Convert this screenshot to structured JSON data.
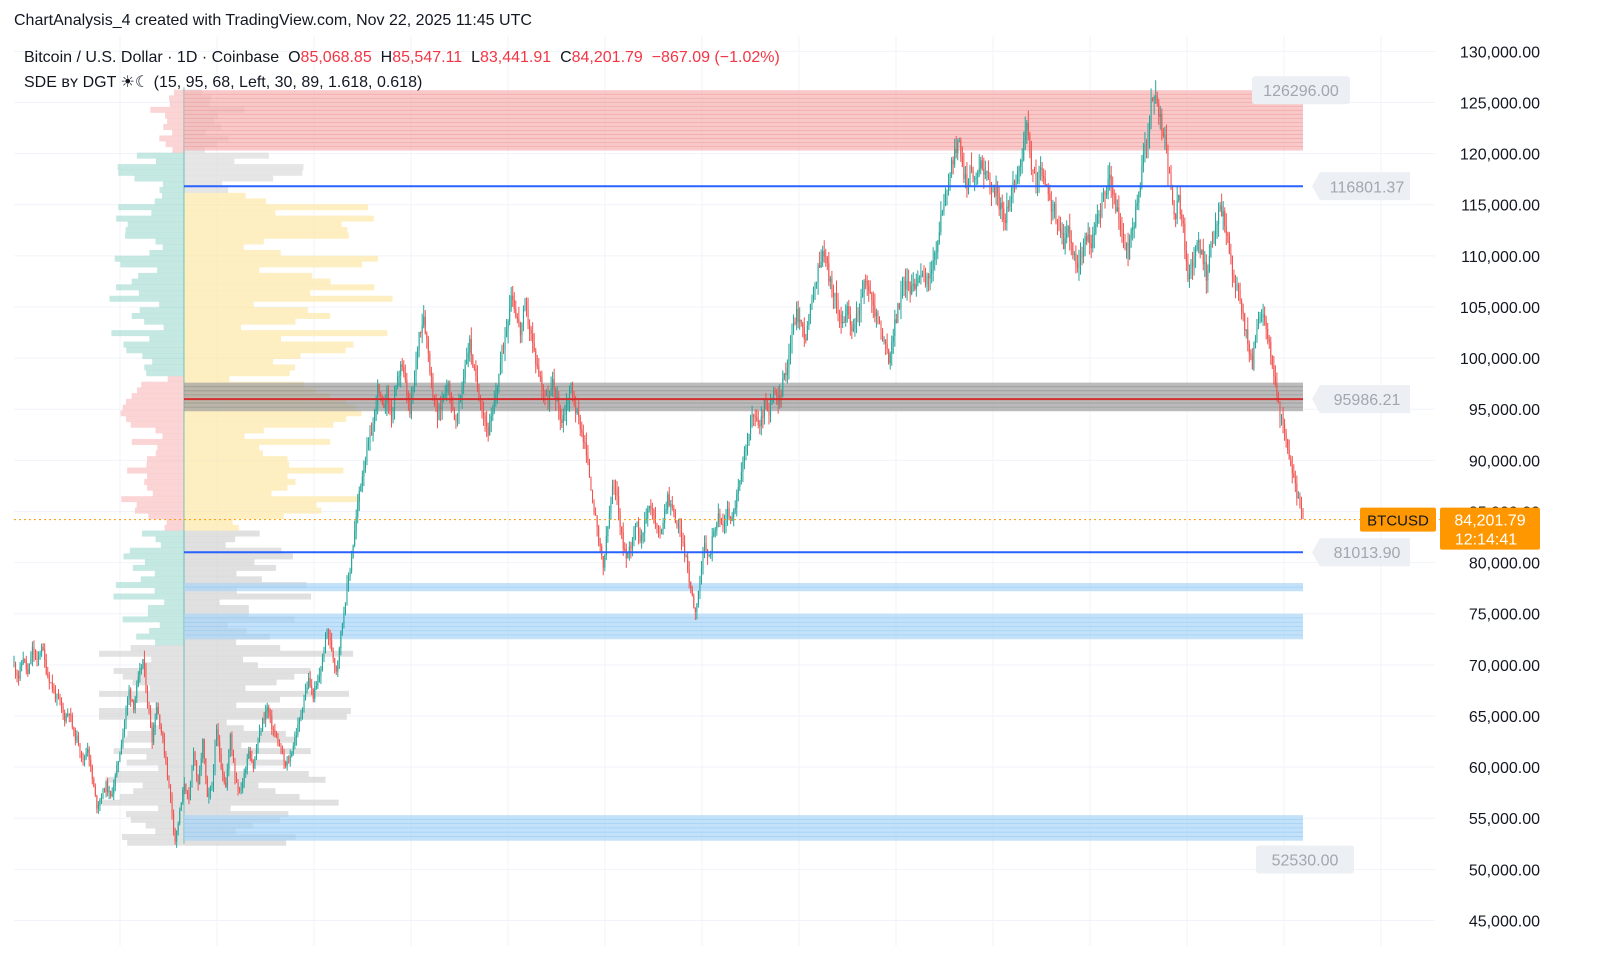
{
  "header": {
    "title": "ChartAnalysis_4 created with TradingView.com, Nov 22, 2025 11:45 UTC"
  },
  "legend": {
    "symbol": "Bitcoin / U.S. Dollar · 1D · Coinbase",
    "open_label": "O",
    "open": "85,068.85",
    "high_label": "H",
    "high": "85,547.11",
    "low_label": "L",
    "low": "83,441.91",
    "close_label": "C",
    "close": "84,201.79",
    "change": "−867.09 (−1.02%)",
    "indicator": "SDE ʙʏ DGT ☀☾ (15, 95, 68, Left, 30, 89, 1.618, 0.618)"
  },
  "colors": {
    "up": "#26a69a",
    "down": "#ef5350",
    "supply_zone": "#f7b1b1",
    "demand_zone": "#a9d6f7",
    "poc_zone": "#9e9e9e",
    "level_line": "#2962ff",
    "poc_line": "#d32f2f",
    "price_tag": "#ff9800",
    "profile_yellow": "#fde7a3",
    "profile_teal": "#9fd9ce",
    "profile_pink": "#f8b9b9"
  },
  "chart_data": {
    "type": "candlestick",
    "symbol": "BTCUSD",
    "ylim": [
      42500,
      131500
    ],
    "y_ticks": [
      "130,000.00",
      "125,000.00",
      "120,000.00",
      "115,000.00",
      "110,000.00",
      "105,000.00",
      "100,000.00",
      "95,000.00",
      "90,000.00",
      "85,000.00",
      "80,000.00",
      "75,000.00",
      "70,000.00",
      "65,000.00",
      "60,000.00",
      "55,000.00",
      "50,000.00",
      "45,000.00"
    ],
    "y_tick_values": [
      130000,
      125000,
      120000,
      115000,
      110000,
      105000,
      100000,
      95000,
      90000,
      85000,
      80000,
      75000,
      70000,
      65000,
      60000,
      55000,
      50000,
      45000
    ],
    "grid": true,
    "last_price": {
      "label": "BTCUSD",
      "value": 84201.79,
      "value_text": "84,201.79",
      "countdown": "12:14:41"
    },
    "supply_zone": [
      120300,
      126200
    ],
    "demand_zones": [
      [
        77200,
        78000
      ],
      [
        72500,
        75000
      ],
      [
        52800,
        55300
      ]
    ],
    "poc_zone": [
      94800,
      97600
    ],
    "levels": [
      {
        "value": 126296.0,
        "label": "126296.00"
      },
      {
        "value": 116801.37,
        "label": "116801.37"
      },
      {
        "value": 95986.21,
        "label": "95986.21"
      },
      {
        "value": 81013.9,
        "label": "81013.90"
      },
      {
        "value": 52530.0,
        "label": "52530.00"
      }
    ],
    "price_path": [
      [
        0,
        70000
      ],
      [
        3,
        68800
      ],
      [
        6,
        70800
      ],
      [
        9,
        69000
      ],
      [
        12,
        71500
      ],
      [
        15,
        70200
      ],
      [
        18,
        72000
      ],
      [
        21,
        69500
      ],
      [
        24,
        68200
      ],
      [
        27,
        67000
      ],
      [
        30,
        66200
      ],
      [
        33,
        64800
      ],
      [
        36,
        65500
      ],
      [
        39,
        63200
      ],
      [
        42,
        62500
      ],
      [
        45,
        60500
      ],
      [
        48,
        62000
      ],
      [
        51,
        58800
      ],
      [
        54,
        56200
      ],
      [
        57,
        57200
      ],
      [
        60,
        58200
      ],
      [
        63,
        57000
      ],
      [
        66,
        59000
      ],
      [
        69,
        61500
      ],
      [
        72,
        64500
      ],
      [
        75,
        67500
      ],
      [
        78,
        66000
      ],
      [
        81,
        68500
      ],
      [
        84,
        70500
      ],
      [
        87,
        66500
      ],
      [
        90,
        62800
      ],
      [
        93,
        66000
      ],
      [
        96,
        63500
      ],
      [
        99,
        60500
      ],
      [
        102,
        57000
      ],
      [
        105,
        52800
      ],
      [
        108,
        55500
      ],
      [
        111,
        58500
      ],
      [
        114,
        56500
      ],
      [
        117,
        61800
      ],
      [
        120,
        58000
      ],
      [
        123,
        62500
      ],
      [
        126,
        56800
      ],
      [
        129,
        58200
      ],
      [
        132,
        63500
      ],
      [
        135,
        60200
      ],
      [
        138,
        58000
      ],
      [
        141,
        63200
      ],
      [
        144,
        59200
      ],
      [
        147,
        57500
      ],
      [
        150,
        59200
      ],
      [
        153,
        61800
      ],
      [
        156,
        60000
      ],
      [
        159,
        62500
      ],
      [
        162,
        64500
      ],
      [
        165,
        65800
      ],
      [
        168,
        64000
      ],
      [
        171,
        62800
      ],
      [
        174,
        61500
      ],
      [
        177,
        60000
      ],
      [
        180,
        61000
      ],
      [
        183,
        62800
      ],
      [
        186,
        64500
      ],
      [
        189,
        66800
      ],
      [
        192,
        68500
      ],
      [
        195,
        67000
      ],
      [
        198,
        68200
      ],
      [
        201,
        70500
      ],
      [
        204,
        73500
      ],
      [
        207,
        71500
      ],
      [
        210,
        69500
      ],
      [
        213,
        73000
      ],
      [
        216,
        76500
      ],
      [
        219,
        79500
      ],
      [
        222,
        83000
      ],
      [
        225,
        87000
      ],
      [
        228,
        89500
      ],
      [
        231,
        91500
      ],
      [
        234,
        93500
      ],
      [
        237,
        97000
      ],
      [
        240,
        95000
      ],
      [
        243,
        96500
      ],
      [
        246,
        94200
      ],
      [
        249,
        96800
      ],
      [
        252,
        99500
      ],
      [
        255,
        97500
      ],
      [
        258,
        94500
      ],
      [
        261,
        98200
      ],
      [
        264,
        102500
      ],
      [
        267,
        104200
      ],
      [
        270,
        100500
      ],
      [
        273,
        96500
      ],
      [
        276,
        94200
      ],
      [
        279,
        95800
      ],
      [
        282,
        97800
      ],
      [
        285,
        95800
      ],
      [
        288,
        93500
      ],
      [
        291,
        96200
      ],
      [
        294,
        99500
      ],
      [
        297,
        101500
      ],
      [
        300,
        98500
      ],
      [
        303,
        96500
      ],
      [
        306,
        94500
      ],
      [
        309,
        92800
      ],
      [
        312,
        94500
      ],
      [
        315,
        97500
      ],
      [
        318,
        100500
      ],
      [
        321,
        103000
      ],
      [
        324,
        106500
      ],
      [
        327,
        104500
      ],
      [
        330,
        102500
      ],
      [
        333,
        105000
      ],
      [
        336,
        103000
      ],
      [
        339,
        100500
      ],
      [
        342,
        98500
      ],
      [
        345,
        97000
      ],
      [
        348,
        95500
      ],
      [
        351,
        97500
      ],
      [
        354,
        95800
      ],
      [
        357,
        93800
      ],
      [
        360,
        95500
      ],
      [
        363,
        97200
      ],
      [
        366,
        95000
      ],
      [
        369,
        93500
      ],
      [
        372,
        91500
      ],
      [
        375,
        88500
      ],
      [
        378,
        85200
      ],
      [
        381,
        82000
      ],
      [
        384,
        79500
      ],
      [
        387,
        83500
      ],
      [
        390,
        87200
      ],
      [
        393,
        86500
      ],
      [
        396,
        82500
      ],
      [
        399,
        80500
      ],
      [
        402,
        81800
      ],
      [
        405,
        84000
      ],
      [
        408,
        82500
      ],
      [
        411,
        83800
      ],
      [
        414,
        86000
      ],
      [
        417,
        84500
      ],
      [
        420,
        82500
      ],
      [
        423,
        84200
      ],
      [
        426,
        86500
      ],
      [
        429,
        85200
      ],
      [
        432,
        83800
      ],
      [
        435,
        82500
      ],
      [
        438,
        80200
      ],
      [
        441,
        77500
      ],
      [
        444,
        75200
      ],
      [
        447,
        78500
      ],
      [
        450,
        81500
      ],
      [
        453,
        80500
      ],
      [
        456,
        83200
      ],
      [
        459,
        84500
      ],
      [
        462,
        83500
      ],
      [
        465,
        85000
      ],
      [
        468,
        84200
      ],
      [
        471,
        86500
      ],
      [
        474,
        88500
      ],
      [
        477,
        91500
      ],
      [
        480,
        93800
      ],
      [
        483,
        94500
      ],
      [
        486,
        93000
      ],
      [
        489,
        95500
      ],
      [
        492,
        94200
      ],
      [
        495,
        96800
      ],
      [
        498,
        95500
      ],
      [
        501,
        97500
      ],
      [
        504,
        99500
      ],
      [
        507,
        102500
      ],
      [
        510,
        104500
      ],
      [
        513,
        103200
      ],
      [
        516,
        102000
      ],
      [
        519,
        104800
      ],
      [
        522,
        107000
      ],
      [
        525,
        109500
      ],
      [
        528,
        110500
      ],
      [
        531,
        108000
      ],
      [
        534,
        106200
      ],
      [
        537,
        104800
      ],
      [
        540,
        103500
      ],
      [
        543,
        104500
      ],
      [
        546,
        102500
      ],
      [
        549,
        104000
      ],
      [
        552,
        105800
      ],
      [
        555,
        107500
      ],
      [
        558,
        106200
      ],
      [
        561,
        104500
      ],
      [
        564,
        103500
      ],
      [
        567,
        101500
      ],
      [
        570,
        99800
      ],
      [
        573,
        102500
      ],
      [
        576,
        104800
      ],
      [
        579,
        106800
      ],
      [
        582,
        107500
      ],
      [
        585,
        106500
      ],
      [
        588,
        107800
      ],
      [
        591,
        108500
      ],
      [
        594,
        107200
      ],
      [
        597,
        108500
      ],
      [
        600,
        109800
      ],
      [
        603,
        112500
      ],
      [
        606,
        115500
      ],
      [
        609,
        117500
      ],
      [
        612,
        119200
      ],
      [
        615,
        121500
      ],
      [
        618,
        118800
      ],
      [
        621,
        117000
      ],
      [
        624,
        118500
      ],
      [
        627,
        117200
      ],
      [
        630,
        119500
      ],
      [
        633,
        118200
      ],
      [
        636,
        117000
      ],
      [
        639,
        116500
      ],
      [
        642,
        115200
      ],
      [
        645,
        113500
      ],
      [
        648,
        114500
      ],
      [
        651,
        116800
      ],
      [
        654,
        118500
      ],
      [
        657,
        119800
      ],
      [
        660,
        122500
      ],
      [
        663,
        118500
      ],
      [
        666,
        117200
      ],
      [
        669,
        118500
      ],
      [
        672,
        116800
      ],
      [
        675,
        115200
      ],
      [
        678,
        114500
      ],
      [
        681,
        112500
      ],
      [
        684,
        111200
      ],
      [
        687,
        112800
      ],
      [
        690,
        110500
      ],
      [
        693,
        109000
      ],
      [
        696,
        110200
      ],
      [
        699,
        112000
      ],
      [
        702,
        111200
      ],
      [
        705,
        112800
      ],
      [
        708,
        114500
      ],
      [
        711,
        116200
      ],
      [
        714,
        117500
      ],
      [
        717,
        115500
      ],
      [
        720,
        113500
      ],
      [
        723,
        111500
      ],
      [
        726,
        110200
      ],
      [
        729,
        112800
      ],
      [
        732,
        115000
      ],
      [
        735,
        118500
      ],
      [
        738,
        121500
      ],
      [
        741,
        124800
      ],
      [
        744,
        125800
      ],
      [
        747,
        123200
      ],
      [
        750,
        121500
      ],
      [
        753,
        117500
      ],
      [
        756,
        113500
      ],
      [
        759,
        115500
      ],
      [
        762,
        112500
      ],
      [
        765,
        107500
      ],
      [
        768,
        109500
      ],
      [
        771,
        111500
      ],
      [
        774,
        110000
      ],
      [
        777,
        108200
      ],
      [
        780,
        110800
      ],
      [
        783,
        112800
      ],
      [
        786,
        114800
      ],
      [
        789,
        113500
      ],
      [
        792,
        110500
      ],
      [
        795,
        107500
      ],
      [
        798,
        106200
      ],
      [
        801,
        104000
      ],
      [
        804,
        101500
      ],
      [
        807,
        99500
      ],
      [
        810,
        102500
      ],
      [
        813,
        104500
      ],
      [
        816,
        103200
      ],
      [
        819,
        100500
      ],
      [
        822,
        97500
      ],
      [
        825,
        94500
      ],
      [
        828,
        92500
      ],
      [
        831,
        90500
      ],
      [
        834,
        88000
      ],
      [
        837,
        86000
      ],
      [
        840,
        84201.79
      ]
    ],
    "volume_profile_left": true
  }
}
